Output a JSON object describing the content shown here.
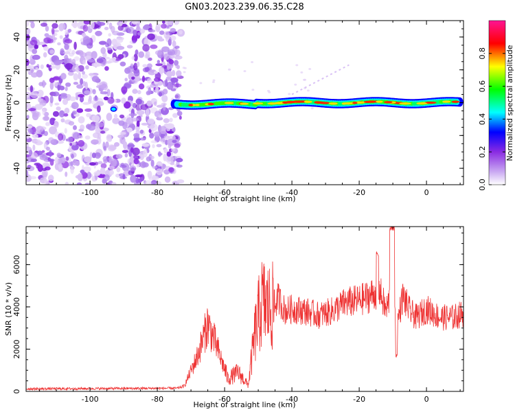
{
  "figure": {
    "title": "GN03.2023.239.06.35.C28"
  },
  "chart_data": [
    {
      "type": "heatmap",
      "name": "spectrogram",
      "xlabel": "Height of straight line (km)",
      "ylabel": "Frequency (Hz)",
      "xlim": [
        -119,
        11
      ],
      "ylim": [
        -50,
        50
      ],
      "xticks": [
        -100,
        -80,
        -60,
        -40,
        -20,
        0
      ],
      "xtick_labels": [
        "-100",
        "-80",
        "-60",
        "-40",
        "-20",
        "0"
      ],
      "yticks": [
        -40,
        -20,
        0,
        20,
        40
      ],
      "ytick_labels": [
        "-40",
        "-20",
        "0",
        "20",
        "40"
      ],
      "noise_region_x": [
        -119,
        -73
      ],
      "signal_band": {
        "x": [
          -75,
          10
        ],
        "center_freq": 0,
        "half_width_hz": 2
      },
      "colorbar": {
        "label": "Normalized spectral amplitude",
        "range": [
          0,
          1
        ],
        "ticks": [
          0.0,
          0.2,
          0.4,
          0.6,
          0.8
        ],
        "tick_labels": [
          "0.0",
          "0.2",
          "0.4",
          "0.6",
          "0.8"
        ],
        "colors": [
          "#ffffff",
          "#8a2be2",
          "#0000ff",
          "#00ffff",
          "#00ff00",
          "#ffff00",
          "#ff0000",
          "#ff1493"
        ]
      },
      "grid": false
    },
    {
      "type": "line",
      "name": "snr",
      "xlabel": "Height of straight line (km)",
      "ylabel": "SNR (10 * v/v)",
      "xlim": [
        -119,
        11
      ],
      "ylim": [
        0,
        7800
      ],
      "xticks": [
        -100,
        -80,
        -60,
        -40,
        -20,
        0
      ],
      "xtick_labels": [
        "-100",
        "-80",
        "-60",
        "-40",
        "-20",
        "0"
      ],
      "yticks": [
        0,
        2000,
        4000,
        6000
      ],
      "ytick_labels": [
        "0",
        "2000",
        "4000",
        "6000"
      ],
      "color": "#ee3333",
      "envelope": {
        "x": [
          -119,
          -74,
          -72,
          -68,
          -65,
          -63,
          -61,
          -59,
          -56,
          -53,
          -51,
          -49,
          -46,
          -44,
          -42,
          -40,
          -36,
          -32,
          -28,
          -24,
          -20,
          -17,
          -14,
          -12,
          -10,
          -9,
          -7,
          -5,
          -3,
          0,
          4,
          8,
          11
        ],
        "y": [
          120,
          150,
          250,
          1700,
          3200,
          2400,
          1500,
          600,
          900,
          300,
          2700,
          4200,
          3900,
          4400,
          3800,
          3900,
          3800,
          3600,
          3800,
          4200,
          4300,
          4500,
          4800,
          3800,
          5000,
          3000,
          4500,
          3800,
          3500,
          3900,
          3500,
          3500,
          3700
        ]
      },
      "grid": false
    }
  ]
}
